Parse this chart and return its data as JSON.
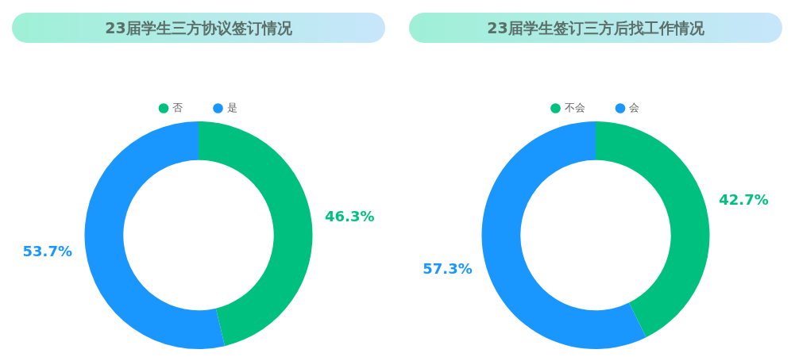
{
  "chart_data": [
    {
      "type": "donut",
      "title": "23届学生三方协议签订情况",
      "categories": [
        "否",
        "是"
      ],
      "values": [
        46.3,
        53.7
      ],
      "colors": [
        "#00c07f",
        "#1a96ff"
      ],
      "value_labels": [
        "46.3%",
        "53.7%"
      ],
      "legend": "top"
    },
    {
      "type": "donut",
      "title": "23届学生签订三方后找工作情况",
      "categories": [
        "不会",
        "会"
      ],
      "values": [
        42.7,
        57.3
      ],
      "colors": [
        "#00c07f",
        "#1a96ff"
      ],
      "value_labels": [
        "42.7%",
        "57.3%"
      ],
      "legend": "top"
    }
  ]
}
